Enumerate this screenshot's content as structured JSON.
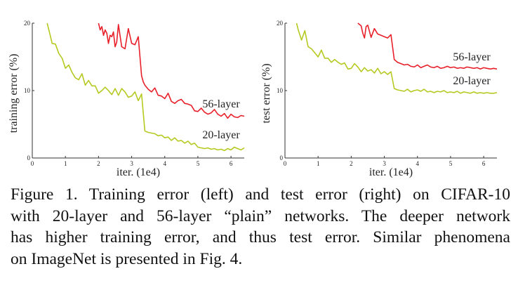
{
  "chart_data": [
    {
      "type": "line",
      "title": "",
      "xlabel": "iter. (1e4)",
      "ylabel": "training error (%)",
      "xlim": [
        0,
        6.4
      ],
      "ylim": [
        0,
        20
      ],
      "xticks": [
        "0",
        "1",
        "2",
        "3",
        "4",
        "5",
        "6"
      ],
      "yticks": [
        "0",
        "10",
        "20"
      ],
      "grid": false,
      "series": [
        {
          "name": "56-layer",
          "color": "#e8202a",
          "x": [
            2.0,
            2.05,
            2.1,
            2.15,
            2.2,
            2.25,
            2.3,
            2.35,
            2.4,
            2.45,
            2.5,
            2.55,
            2.6,
            2.7,
            2.8,
            2.9,
            3.0,
            3.1,
            3.2,
            3.3,
            3.35,
            3.4,
            3.5,
            3.6,
            3.7,
            3.8,
            3.9,
            4.0,
            4.1,
            4.2,
            4.3,
            4.4,
            4.5,
            4.6,
            4.7,
            4.8,
            4.9,
            5.0,
            5.1,
            5.2,
            5.3,
            5.4,
            5.5,
            5.6,
            5.7,
            5.8,
            5.9,
            6.0,
            6.1,
            6.2,
            6.3,
            6.4
          ],
          "y": [
            20.3,
            19.0,
            19.5,
            18.2,
            19.0,
            18.5,
            17.0,
            18.2,
            18.0,
            18.7,
            16.5,
            17.2,
            19.8,
            16.5,
            16.2,
            19.2,
            17.0,
            16.8,
            18.0,
            12.2,
            11.3,
            10.8,
            10.2,
            9.8,
            10.4,
            9.3,
            9.2,
            8.8,
            9.6,
            8.4,
            8.1,
            8.5,
            8.7,
            8.1,
            8.0,
            7.8,
            7.0,
            6.9,
            7.4,
            6.8,
            6.5,
            6.7,
            7.2,
            6.5,
            6.2,
            6.6,
            5.9,
            6.5,
            6.1,
            6.0,
            6.3,
            6.2
          ]
        },
        {
          "name": "20-layer",
          "color": "#b6c920",
          "x": [
            0.45,
            0.5,
            0.6,
            0.7,
            0.8,
            0.9,
            1.0,
            1.1,
            1.2,
            1.3,
            1.4,
            1.5,
            1.6,
            1.7,
            1.8,
            1.9,
            2.0,
            2.1,
            2.2,
            2.3,
            2.4,
            2.5,
            2.6,
            2.7,
            2.8,
            2.9,
            3.0,
            3.1,
            3.2,
            3.3,
            3.4,
            3.5,
            3.6,
            3.7,
            3.8,
            3.9,
            4.0,
            4.1,
            4.2,
            4.3,
            4.4,
            4.5,
            4.6,
            4.7,
            4.8,
            4.9,
            5.0,
            5.1,
            5.2,
            5.3,
            5.4,
            5.5,
            5.6,
            5.7,
            5.8,
            5.9,
            6.0,
            6.1,
            6.2,
            6.3,
            6.4
          ],
          "y": [
            20.0,
            19.0,
            17.0,
            16.9,
            15.5,
            14.8,
            13.3,
            13.8,
            12.7,
            11.9,
            11.6,
            12.5,
            10.8,
            11.5,
            10.7,
            10.7,
            9.6,
            10.0,
            10.5,
            10.0,
            9.4,
            10.3,
            9.3,
            10.3,
            9.8,
            9.0,
            9.2,
            9.8,
            8.5,
            9.5,
            4.0,
            3.8,
            3.7,
            3.6,
            3.3,
            3.4,
            3.0,
            3.1,
            2.6,
            3.0,
            2.5,
            2.6,
            2.2,
            2.5,
            2.0,
            2.2,
            1.6,
            1.5,
            1.4,
            1.5,
            1.3,
            1.4,
            1.2,
            1.3,
            1.1,
            1.4,
            1.2,
            1.6,
            1.4,
            1.2,
            1.5
          ]
        }
      ]
    },
    {
      "type": "line",
      "title": "",
      "xlabel": "iter. (1e4)",
      "ylabel": "test error (%)",
      "xlim": [
        0,
        6.4
      ],
      "ylim": [
        0,
        20
      ],
      "xticks": [
        "0",
        "1",
        "2",
        "3",
        "4",
        "5",
        "6"
      ],
      "yticks": [
        "0",
        "10",
        "20"
      ],
      "grid": false,
      "series": [
        {
          "name": "56-layer",
          "color": "#e8202a",
          "x": [
            2.2,
            2.25,
            2.3,
            2.35,
            2.4,
            2.45,
            2.5,
            2.6,
            2.7,
            2.8,
            2.9,
            3.0,
            3.1,
            3.2,
            3.3,
            3.4,
            3.5,
            3.6,
            3.7,
            3.8,
            3.9,
            4.0,
            4.1,
            4.2,
            4.3,
            4.4,
            4.5,
            4.6,
            4.7,
            4.8,
            4.9,
            5.0,
            5.1,
            5.2,
            5.3,
            5.4,
            5.5,
            5.6,
            5.7,
            5.8,
            5.9,
            6.0,
            6.1,
            6.2,
            6.3,
            6.4
          ],
          "y": [
            20.0,
            19.8,
            19.6,
            18.5,
            17.8,
            19.5,
            19.7,
            17.9,
            19.2,
            18.4,
            18.2,
            18.0,
            17.8,
            18.3,
            14.6,
            14.2,
            14.0,
            13.8,
            13.9,
            13.6,
            13.5,
            13.8,
            13.4,
            13.6,
            13.8,
            13.5,
            13.4,
            13.6,
            13.3,
            13.4,
            13.6,
            13.4,
            13.5,
            13.3,
            13.4,
            13.3,
            13.5,
            13.4,
            13.3,
            13.4,
            13.2,
            13.4,
            13.3,
            13.2,
            13.3,
            13.2
          ]
        },
        {
          "name": "20-layer",
          "color": "#b6c920",
          "x": [
            0.35,
            0.4,
            0.5,
            0.6,
            0.7,
            0.8,
            0.9,
            1.0,
            1.1,
            1.2,
            1.3,
            1.4,
            1.5,
            1.6,
            1.7,
            1.8,
            1.9,
            2.0,
            2.1,
            2.2,
            2.3,
            2.4,
            2.5,
            2.6,
            2.7,
            2.8,
            2.9,
            3.0,
            3.1,
            3.2,
            3.3,
            3.4,
            3.5,
            3.6,
            3.7,
            3.8,
            3.9,
            4.0,
            4.1,
            4.2,
            4.3,
            4.4,
            4.5,
            4.6,
            4.7,
            4.8,
            4.9,
            5.0,
            5.1,
            5.2,
            5.3,
            5.4,
            5.5,
            5.6,
            5.7,
            5.8,
            5.9,
            6.0,
            6.1,
            6.2,
            6.3,
            6.4
          ],
          "y": [
            20.0,
            19.0,
            17.5,
            18.9,
            16.5,
            16.2,
            15.6,
            15.0,
            16.0,
            14.8,
            14.8,
            14.2,
            14.6,
            14.2,
            13.9,
            14.1,
            13.2,
            13.3,
            14.0,
            13.5,
            12.8,
            13.4,
            12.9,
            13.1,
            12.6,
            13.3,
            12.5,
            12.8,
            12.4,
            12.8,
            10.3,
            10.1,
            10.0,
            9.9,
            10.2,
            9.8,
            10.0,
            10.1,
            9.9,
            10.2,
            9.8,
            9.9,
            9.7,
            9.9,
            9.8,
            10.0,
            9.7,
            9.8,
            9.7,
            9.9,
            9.6,
            9.8,
            9.7,
            9.6,
            9.8,
            9.6,
            9.7,
            9.6,
            9.7,
            9.6,
            9.6,
            9.7
          ]
        }
      ]
    }
  ],
  "caption": {
    "lines": [
      "Figure 1. Training error (left) and test error (right) on CIFAR-10",
      "with 20-layer and 56-layer “plain” networks. The deeper network",
      "has higher training error, and thus test error. Similar phenomena",
      "on ImageNet is presented in Fig. 4."
    ]
  }
}
